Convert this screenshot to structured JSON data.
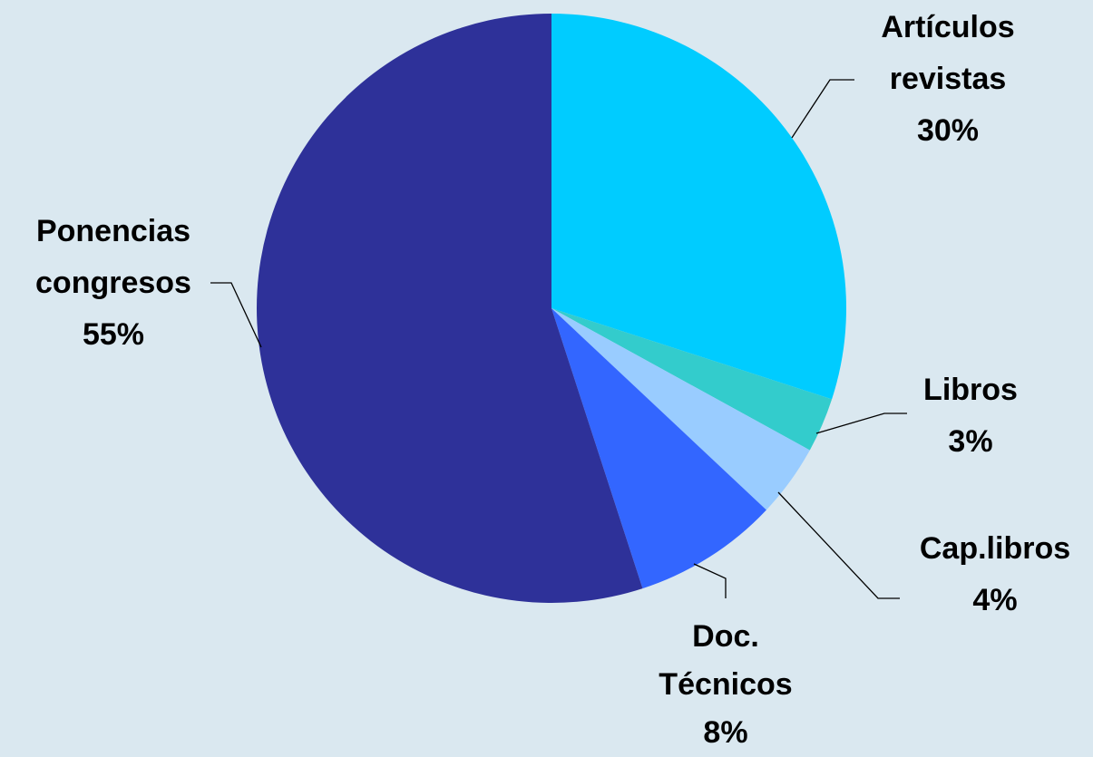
{
  "chart_data": {
    "type": "pie",
    "categories": [
      "Artículos revistas",
      "Libros",
      "Cap.libros",
      "Doc. Técnicos",
      "Ponencias congresos"
    ],
    "values": [
      30,
      3,
      4,
      8,
      55
    ],
    "value_labels": [
      "30%",
      "3%",
      "4%",
      "8%",
      "55%"
    ],
    "colors": [
      "#00ccff",
      "#33cccc",
      "#99ccff",
      "#3366ff",
      "#2e3199"
    ]
  }
}
